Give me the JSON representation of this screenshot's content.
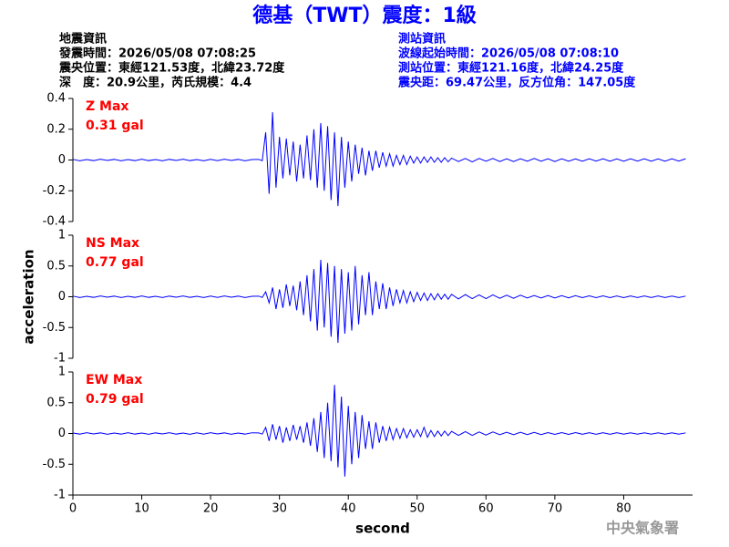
{
  "header": {
    "title": "德基（TWT）震度：1級",
    "left": [
      "地震資訊",
      "發震時間：2026/05/08 07:08:25",
      "震央位置：東經121.53度，北緯23.72度",
      "深　度：20.9公里，芮氏規模：4.4"
    ],
    "right": [
      "測站資訊",
      "波線起始時間：2026/05/08 07:08:10",
      "測站位置：東經121.16度，北緯24.25度",
      "震央距：69.47公里，反方位角：147.05度"
    ]
  },
  "watermark": "中央氣象署",
  "chart_data": [
    {
      "type": "line",
      "annotation": "Z Max",
      "peak_label": "0.31 gal",
      "color": "#0000ff",
      "ylim": [
        -0.4,
        0.4
      ],
      "yticks": [
        -0.4,
        -0.2,
        0,
        0.2,
        0.4
      ],
      "xlim": [
        0,
        90
      ],
      "x": [
        0,
        1,
        2,
        3,
        4,
        5,
        6,
        7,
        8,
        9,
        10,
        11,
        12,
        13,
        14,
        15,
        16,
        17,
        18,
        19,
        20,
        21,
        22,
        23,
        24,
        25,
        26,
        27,
        27.5,
        28,
        28.5,
        29,
        29.5,
        30,
        30.5,
        31,
        31.5,
        32,
        32.5,
        33,
        33.5,
        34,
        34.5,
        35,
        35.5,
        36,
        36.5,
        37,
        37.5,
        38,
        38.5,
        39,
        39.5,
        40,
        40.5,
        41,
        41.5,
        42,
        42.5,
        43,
        43.5,
        44,
        44.5,
        45,
        45.5,
        46,
        46.5,
        47,
        47.5,
        48,
        48.5,
        49,
        49.5,
        50,
        50.5,
        51,
        51.5,
        52,
        52.5,
        53,
        53.5,
        54,
        54.5,
        55,
        56,
        57,
        58,
        59,
        60,
        61,
        62,
        63,
        64,
        65,
        66,
        67,
        68,
        69,
        70,
        71,
        72,
        73,
        74,
        75,
        76,
        77,
        78,
        79,
        80,
        81,
        82,
        83,
        84,
        85,
        86,
        87,
        88,
        89
      ],
      "values": [
        0.004,
        -0.005,
        0.003,
        -0.004,
        0.005,
        -0.003,
        0.004,
        -0.005,
        0.003,
        -0.004,
        0.005,
        -0.004,
        0.003,
        -0.005,
        0.004,
        -0.003,
        0.005,
        -0.004,
        0.003,
        -0.005,
        0.004,
        -0.004,
        0.005,
        -0.003,
        0.004,
        -0.005,
        0.003,
        0.004,
        -0.005,
        0.18,
        -0.22,
        0.31,
        -0.18,
        0.15,
        -0.12,
        0.14,
        -0.1,
        0.12,
        -0.14,
        0.1,
        -0.12,
        0.16,
        -0.13,
        0.2,
        -0.18,
        0.24,
        -0.2,
        0.22,
        -0.26,
        0.18,
        -0.3,
        0.15,
        -0.18,
        0.12,
        -0.14,
        0.1,
        -0.09,
        0.08,
        -0.1,
        0.06,
        -0.07,
        0.06,
        -0.05,
        0.05,
        -0.04,
        0.04,
        -0.04,
        0.03,
        -0.03,
        0.03,
        -0.03,
        0.025,
        -0.02,
        0.02,
        -0.02,
        0.02,
        -0.015,
        0.02,
        -0.015,
        0.015,
        -0.015,
        0.015,
        -0.012,
        0.012,
        -0.01,
        0.01,
        -0.012,
        0.01,
        -0.008,
        0.01,
        -0.01,
        0.008,
        -0.01,
        0.008,
        -0.008,
        0.01,
        -0.008,
        0.008,
        -0.01,
        0.008,
        -0.008,
        0.007,
        -0.008,
        0.008,
        -0.007,
        0.008,
        -0.008,
        0.007,
        -0.008,
        0.008,
        -0.007,
        0.008,
        -0.008,
        0.007,
        -0.008,
        0.008,
        -0.007,
        0.008
      ]
    },
    {
      "type": "line",
      "annotation": "NS Max",
      "peak_label": "0.77 gal",
      "color": "#0000ff",
      "ylabel": "acceleration",
      "ylim": [
        -1,
        1
      ],
      "yticks": [
        -1,
        -0.5,
        0,
        0.5,
        1
      ],
      "xlim": [
        0,
        90
      ],
      "x": [
        0,
        1,
        2,
        3,
        4,
        5,
        6,
        7,
        8,
        9,
        10,
        11,
        12,
        13,
        14,
        15,
        16,
        17,
        18,
        19,
        20,
        21,
        22,
        23,
        24,
        25,
        26,
        27,
        27.5,
        28,
        28.5,
        29,
        29.5,
        30,
        30.5,
        31,
        31.5,
        32,
        32.5,
        33,
        33.5,
        34,
        34.5,
        35,
        35.5,
        36,
        36.5,
        37,
        37.5,
        38,
        38.5,
        39,
        39.5,
        40,
        40.5,
        41,
        41.5,
        42,
        42.5,
        43,
        43.5,
        44,
        44.5,
        45,
        45.5,
        46,
        46.5,
        47,
        47.5,
        48,
        48.5,
        49,
        49.5,
        50,
        50.5,
        51,
        51.5,
        52,
        52.5,
        53,
        53.5,
        54,
        54.5,
        55,
        56,
        57,
        58,
        59,
        60,
        61,
        62,
        63,
        64,
        65,
        66,
        67,
        68,
        69,
        70,
        71,
        72,
        73,
        74,
        75,
        76,
        77,
        78,
        79,
        80,
        81,
        82,
        83,
        84,
        85,
        86,
        87,
        88,
        89
      ],
      "values": [
        0.01,
        -0.012,
        0.008,
        -0.01,
        0.012,
        -0.008,
        0.01,
        -0.012,
        0.008,
        -0.01,
        0.012,
        -0.01,
        0.008,
        -0.012,
        0.01,
        -0.008,
        0.012,
        -0.01,
        0.008,
        -0.012,
        0.01,
        -0.01,
        0.012,
        -0.008,
        0.01,
        -0.012,
        0.008,
        0.01,
        -0.012,
        0.08,
        -0.1,
        0.15,
        -0.2,
        0.12,
        -0.18,
        0.2,
        -0.15,
        0.18,
        -0.22,
        0.25,
        -0.3,
        0.35,
        -0.4,
        0.45,
        -0.55,
        0.6,
        -0.5,
        0.55,
        -0.65,
        0.5,
        -0.75,
        0.45,
        -0.6,
        0.4,
        -0.55,
        0.5,
        -0.45,
        0.35,
        -0.3,
        0.4,
        -0.3,
        0.25,
        -0.2,
        0.22,
        -0.2,
        0.15,
        -0.15,
        0.12,
        -0.1,
        0.1,
        -0.1,
        0.08,
        -0.08,
        0.07,
        -0.06,
        0.06,
        -0.06,
        0.05,
        -0.05,
        0.05,
        -0.04,
        0.04,
        -0.04,
        0.04,
        -0.035,
        0.035,
        -0.03,
        0.03,
        -0.03,
        0.03,
        -0.025,
        0.025,
        -0.025,
        0.025,
        -0.02,
        0.02,
        -0.02,
        0.02,
        -0.02,
        0.018,
        -0.018,
        0.018,
        -0.015,
        0.015,
        -0.015,
        0.015,
        -0.015,
        0.012,
        -0.015,
        0.012,
        -0.012,
        0.012,
        -0.012,
        0.012,
        -0.012,
        0.01,
        -0.012,
        0.01
      ]
    },
    {
      "type": "line",
      "annotation": "EW Max",
      "peak_label": "0.79 gal",
      "color": "#0000ff",
      "xlabel": "second",
      "ylim": [
        -1,
        1
      ],
      "yticks": [
        -1,
        -0.5,
        0,
        0.5,
        1
      ],
      "xlim": [
        0,
        90
      ],
      "xticks": [
        0,
        10,
        20,
        30,
        40,
        50,
        60,
        70,
        80
      ],
      "x": [
        0,
        1,
        2,
        3,
        4,
        5,
        6,
        7,
        8,
        9,
        10,
        11,
        12,
        13,
        14,
        15,
        16,
        17,
        18,
        19,
        20,
        21,
        22,
        23,
        24,
        25,
        26,
        27,
        27.5,
        28,
        28.5,
        29,
        29.5,
        30,
        30.5,
        31,
        31.5,
        32,
        32.5,
        33,
        33.5,
        34,
        34.5,
        35,
        35.5,
        36,
        36.5,
        37,
        37.5,
        38,
        38.5,
        39,
        39.5,
        40,
        40.5,
        41,
        41.5,
        42,
        42.5,
        43,
        43.5,
        44,
        44.5,
        45,
        45.5,
        46,
        46.5,
        47,
        47.5,
        48,
        48.5,
        49,
        49.5,
        50,
        50.5,
        51,
        51.5,
        52,
        52.5,
        53,
        53.5,
        54,
        54.5,
        55,
        56,
        57,
        58,
        59,
        60,
        61,
        62,
        63,
        64,
        65,
        66,
        67,
        68,
        69,
        70,
        71,
        72,
        73,
        74,
        75,
        76,
        77,
        78,
        79,
        80,
        81,
        82,
        83,
        84,
        85,
        86,
        87,
        88,
        89
      ],
      "values": [
        0.008,
        -0.01,
        0.012,
        -0.008,
        0.01,
        -0.012,
        0.008,
        -0.01,
        0.012,
        -0.01,
        0.008,
        -0.012,
        0.01,
        -0.008,
        0.012,
        -0.01,
        0.008,
        -0.012,
        0.01,
        -0.01,
        0.012,
        -0.008,
        0.01,
        -0.012,
        0.008,
        -0.01,
        0.012,
        0.01,
        -0.01,
        0.1,
        -0.12,
        0.15,
        -0.1,
        0.12,
        -0.15,
        0.1,
        -0.12,
        0.14,
        -0.1,
        0.12,
        -0.15,
        0.18,
        -0.2,
        0.25,
        -0.3,
        0.35,
        -0.4,
        0.5,
        -0.45,
        0.79,
        -0.55,
        0.6,
        -0.7,
        0.45,
        -0.5,
        0.35,
        -0.4,
        0.3,
        -0.25,
        0.2,
        -0.25,
        0.18,
        -0.15,
        0.12,
        -0.12,
        0.1,
        -0.1,
        0.08,
        -0.08,
        0.08,
        -0.07,
        0.06,
        -0.06,
        0.06,
        -0.05,
        0.1,
        -0.06,
        0.05,
        -0.05,
        0.04,
        -0.04,
        0.04,
        -0.035,
        0.035,
        -0.03,
        0.03,
        -0.03,
        0.025,
        -0.025,
        0.025,
        -0.02,
        0.02,
        -0.02,
        0.02,
        -0.018,
        0.018,
        -0.018,
        0.015,
        -0.015,
        0.015,
        -0.015,
        0.015,
        -0.012,
        0.012,
        -0.012,
        0.012,
        -0.012,
        0.012,
        -0.01,
        0.01,
        -0.01,
        0.01,
        -0.01,
        0.01,
        -0.01,
        0.01,
        -0.01,
        0.01
      ]
    }
  ]
}
